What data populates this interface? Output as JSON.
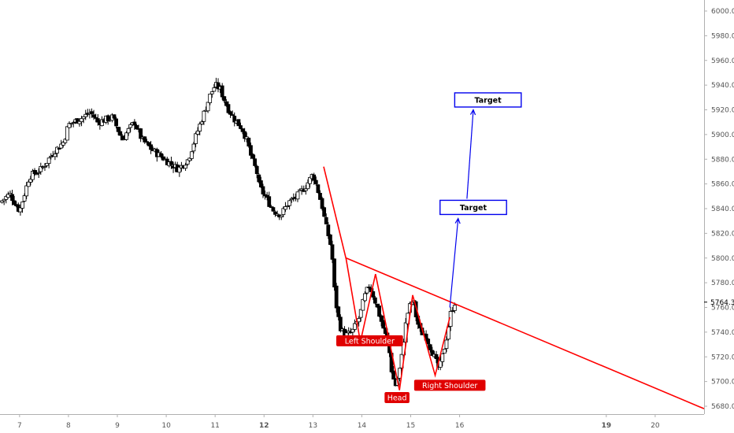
{
  "chart_data": {
    "type": "candlestick",
    "title": "",
    "xlabel": "",
    "ylabel": "",
    "ylim": [
      5677,
      6007
    ],
    "xlim": [
      6.6,
      21.0
    ],
    "y_ticks": [
      5680,
      5700,
      5720,
      5740,
      5760,
      5780,
      5800,
      5820,
      5840,
      5860,
      5880,
      5900,
      5920,
      5940,
      5960,
      5980,
      6000
    ],
    "x_ticks": [
      {
        "value": 7,
        "label": "7",
        "bold": false
      },
      {
        "value": 8,
        "label": "8",
        "bold": false
      },
      {
        "value": 9,
        "label": "9",
        "bold": false
      },
      {
        "value": 10,
        "label": "10",
        "bold": false
      },
      {
        "value": 11,
        "label": "11",
        "bold": false
      },
      {
        "value": 12,
        "label": "12",
        "bold": true
      },
      {
        "value": 13,
        "label": "13",
        "bold": false
      },
      {
        "value": 14,
        "label": "14",
        "bold": false
      },
      {
        "value": 15,
        "label": "15",
        "bold": false
      },
      {
        "value": 16,
        "label": "16",
        "bold": false
      },
      {
        "value": 19,
        "label": "19",
        "bold": true
      },
      {
        "value": 20,
        "label": "20",
        "bold": false
      }
    ],
    "last_price": {
      "value": 5764.3,
      "label": "5764.3"
    },
    "close_path": [
      [
        6.6,
        5845
      ],
      [
        6.8,
        5852
      ],
      [
        7.0,
        5838
      ],
      [
        7.2,
        5866
      ],
      [
        7.45,
        5872
      ],
      [
        7.7,
        5886
      ],
      [
        7.9,
        5894
      ],
      [
        8.0,
        5908
      ],
      [
        8.3,
        5914
      ],
      [
        8.45,
        5918
      ],
      [
        8.6,
        5910
      ],
      [
        8.9,
        5914
      ],
      [
        9.1,
        5896
      ],
      [
        9.2,
        5902
      ],
      [
        9.35,
        5910
      ],
      [
        9.5,
        5896
      ],
      [
        9.7,
        5888
      ],
      [
        9.9,
        5882
      ],
      [
        10.1,
        5876
      ],
      [
        10.25,
        5872
      ],
      [
        10.45,
        5880
      ],
      [
        10.6,
        5898
      ],
      [
        10.75,
        5915
      ],
      [
        10.9,
        5932
      ],
      [
        11.0,
        5940
      ],
      [
        11.1,
        5937
      ],
      [
        11.25,
        5922
      ],
      [
        11.4,
        5912
      ],
      [
        11.55,
        5905
      ],
      [
        11.65,
        5895
      ],
      [
        11.75,
        5880
      ],
      [
        11.85,
        5870
      ],
      [
        11.9,
        5858
      ],
      [
        12.05,
        5848
      ],
      [
        12.2,
        5838
      ],
      [
        12.35,
        5835
      ],
      [
        12.5,
        5845
      ],
      [
        12.7,
        5851
      ],
      [
        12.85,
        5858
      ],
      [
        13.0,
        5868
      ],
      [
        13.1,
        5855
      ],
      [
        13.2,
        5840
      ],
      [
        13.25,
        5828
      ],
      [
        13.35,
        5813
      ],
      [
        13.4,
        5798
      ],
      [
        13.45,
        5768
      ],
      [
        13.55,
        5745
      ],
      [
        13.65,
        5737
      ],
      [
        13.8,
        5740
      ],
      [
        13.95,
        5752
      ],
      [
        14.05,
        5768
      ],
      [
        14.15,
        5778
      ],
      [
        14.25,
        5768
      ],
      [
        14.35,
        5755
      ],
      [
        14.45,
        5742
      ],
      [
        14.55,
        5728
      ],
      [
        14.62,
        5705
      ],
      [
        14.7,
        5696
      ],
      [
        14.8,
        5715
      ],
      [
        14.88,
        5742
      ],
      [
        14.95,
        5758
      ],
      [
        15.05,
        5767
      ],
      [
        15.12,
        5750
      ],
      [
        15.2,
        5740
      ],
      [
        15.3,
        5738
      ],
      [
        15.4,
        5728
      ],
      [
        15.5,
        5718
      ],
      [
        15.58,
        5710
      ],
      [
        15.66,
        5722
      ],
      [
        15.74,
        5737
      ],
      [
        15.82,
        5756
      ],
      [
        15.9,
        5764
      ]
    ],
    "annotations": {
      "labels": [
        {
          "text": "Left Shoulder",
          "x": 14.16,
          "y": 5733
        },
        {
          "text": "Head",
          "x": 14.72,
          "y": 5687
        },
        {
          "text": "Right Shoulder",
          "x": 15.8,
          "y": 5697
        }
      ],
      "targets": [
        {
          "text": "Target",
          "x_start": 15.6,
          "x_end": 16.96,
          "y": 5841
        },
        {
          "text": "Target",
          "x_start": 15.9,
          "x_end": 17.26,
          "y": 5928
        }
      ],
      "neckline": {
        "start": [
          13.68,
          5800
        ],
        "end": [
          21.0,
          5678
        ],
        "color": "#ff0000"
      },
      "pattern_path": {
        "color": "#ff0000",
        "points": [
          [
            13.22,
            5874
          ],
          [
            13.68,
            5799
          ],
          [
            13.97,
            5732
          ],
          [
            14.28,
            5787
          ],
          [
            14.77,
            5693
          ],
          [
            15.04,
            5770
          ],
          [
            15.5,
            5705
          ],
          [
            15.8,
            5752
          ]
        ]
      },
      "target_arrows": [
        {
          "from": [
            15.8,
            5760
          ],
          "to": [
            15.97,
            5832
          ],
          "color": "#0000ee"
        },
        {
          "from": [
            16.15,
            5848
          ],
          "to": [
            16.28,
            5920
          ],
          "color": "#0000ee"
        }
      ]
    },
    "colors": {
      "up": "#ffffff",
      "down": "#000000",
      "wick": "#000000",
      "pattern": "#ff0000",
      "target": "#0000ee",
      "axis": "#b0b0b0"
    }
  }
}
